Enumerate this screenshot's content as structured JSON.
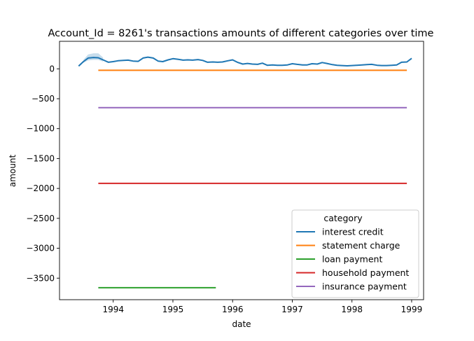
{
  "chart_data": {
    "type": "line",
    "title": "Account_Id = 8261's transactions amounts of different categories over time",
    "xlabel": "date",
    "ylabel": "amount",
    "xlim": [
      1993.1,
      1999.2
    ],
    "ylim": [
      -3860,
      460
    ],
    "xticks": [
      1994,
      1995,
      1996,
      1997,
      1998,
      1999
    ],
    "yticks": [
      0,
      -500,
      -1000,
      -1500,
      -2000,
      -2500,
      -3000,
      -3500
    ],
    "ytick_labels": [
      "0",
      "−500",
      "−1000",
      "−1500",
      "−2000",
      "−2500",
      "−3000",
      "−3500"
    ],
    "grid": false,
    "legend": {
      "title": "category",
      "placement": "lower-right"
    },
    "series": [
      {
        "name": "interest credit",
        "color": "#1f77b4",
        "points": [
          [
            1993.42,
            45
          ],
          [
            1993.5,
            120
          ],
          [
            1993.58,
            180
          ],
          [
            1993.67,
            190
          ],
          [
            1993.75,
            185
          ],
          [
            1993.83,
            150
          ],
          [
            1993.92,
            110
          ],
          [
            1994.0,
            120
          ],
          [
            1994.08,
            135
          ],
          [
            1994.17,
            140
          ],
          [
            1994.25,
            145
          ],
          [
            1994.33,
            130
          ],
          [
            1994.42,
            125
          ],
          [
            1994.5,
            180
          ],
          [
            1994.58,
            195
          ],
          [
            1994.67,
            180
          ],
          [
            1994.75,
            130
          ],
          [
            1994.83,
            120
          ],
          [
            1994.92,
            150
          ],
          [
            1995.0,
            170
          ],
          [
            1995.08,
            160
          ],
          [
            1995.17,
            145
          ],
          [
            1995.25,
            150
          ],
          [
            1995.33,
            145
          ],
          [
            1995.42,
            155
          ],
          [
            1995.5,
            140
          ],
          [
            1995.58,
            110
          ],
          [
            1995.67,
            115
          ],
          [
            1995.75,
            110
          ],
          [
            1995.83,
            115
          ],
          [
            1995.92,
            135
          ],
          [
            1996.0,
            150
          ],
          [
            1996.08,
            110
          ],
          [
            1996.17,
            80
          ],
          [
            1996.25,
            90
          ],
          [
            1996.33,
            80
          ],
          [
            1996.42,
            75
          ],
          [
            1996.5,
            95
          ],
          [
            1996.58,
            60
          ],
          [
            1996.67,
            65
          ],
          [
            1996.75,
            60
          ],
          [
            1996.83,
            60
          ],
          [
            1996.92,
            65
          ],
          [
            1997.0,
            85
          ],
          [
            1997.08,
            75
          ],
          [
            1997.17,
            65
          ],
          [
            1997.25,
            65
          ],
          [
            1997.33,
            85
          ],
          [
            1997.42,
            80
          ],
          [
            1997.5,
            105
          ],
          [
            1997.58,
            90
          ],
          [
            1997.67,
            70
          ],
          [
            1997.75,
            60
          ],
          [
            1997.83,
            55
          ],
          [
            1997.92,
            50
          ],
          [
            1998.0,
            55
          ],
          [
            1998.08,
            60
          ],
          [
            1998.17,
            65
          ],
          [
            1998.25,
            70
          ],
          [
            1998.33,
            75
          ],
          [
            1998.42,
            60
          ],
          [
            1998.5,
            55
          ],
          [
            1998.58,
            55
          ],
          [
            1998.67,
            60
          ],
          [
            1998.75,
            65
          ],
          [
            1998.83,
            110
          ],
          [
            1998.92,
            115
          ],
          [
            1999.0,
            175
          ]
        ],
        "band": [
          [
            1993.5,
            100,
            150
          ],
          [
            1993.58,
            140,
            240
          ],
          [
            1993.67,
            150,
            260
          ],
          [
            1993.75,
            150,
            260
          ],
          [
            1993.83,
            120,
            190
          ]
        ]
      },
      {
        "name": "statement charge",
        "color": "#ff7f0e",
        "points": [
          [
            1993.75,
            -25
          ],
          [
            1998.92,
            -25
          ]
        ]
      },
      {
        "name": "loan payment",
        "color": "#2ca02c",
        "points": [
          [
            1993.75,
            -3660
          ],
          [
            1995.72,
            -3660
          ]
        ]
      },
      {
        "name": "household payment",
        "color": "#d62728",
        "points": [
          [
            1993.75,
            -1915
          ],
          [
            1998.92,
            -1915
          ]
        ]
      },
      {
        "name": "insurance payment",
        "color": "#9467bd",
        "points": [
          [
            1993.75,
            -650
          ],
          [
            1998.92,
            -650
          ]
        ]
      }
    ]
  }
}
